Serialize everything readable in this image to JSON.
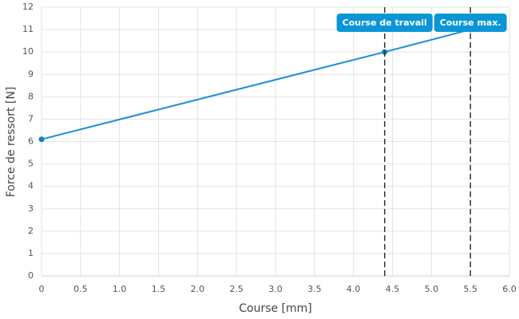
{
  "chart_data": {
    "type": "line",
    "x_label": "Course [mm]",
    "y_label": "Force de ressort [N]",
    "x": [
      0,
      4.4,
      5.5
    ],
    "series": [
      {
        "color": "#1b8fd2",
        "values": [
          6.1,
          10,
          11
        ]
      }
    ],
    "xlim": [
      0,
      6
    ],
    "xticks": [
      0,
      0.5,
      {
        "value": 1,
        "label": "1.0"
      },
      1.5,
      {
        "value": 2,
        "label": "2.0"
      },
      2.5,
      {
        "value": 3,
        "label": "3.0"
      },
      3.5,
      {
        "value": 4,
        "label": "4.0"
      },
      4.5,
      {
        "value": 5,
        "label": "5.0"
      },
      5.5,
      {
        "value": 6,
        "label": "6.0"
      }
    ],
    "ylim": [
      0,
      12
    ],
    "yticks": [
      0,
      1,
      2,
      3,
      4,
      5,
      6,
      7,
      8,
      9,
      10,
      11,
      12
    ],
    "grid": true,
    "annotations": [
      {
        "x": 4.4,
        "label": "Course de travail",
        "color": "#0a96d6"
      },
      {
        "x": 5.5,
        "label": "Course max.",
        "color": "#0a96d6"
      }
    ]
  }
}
